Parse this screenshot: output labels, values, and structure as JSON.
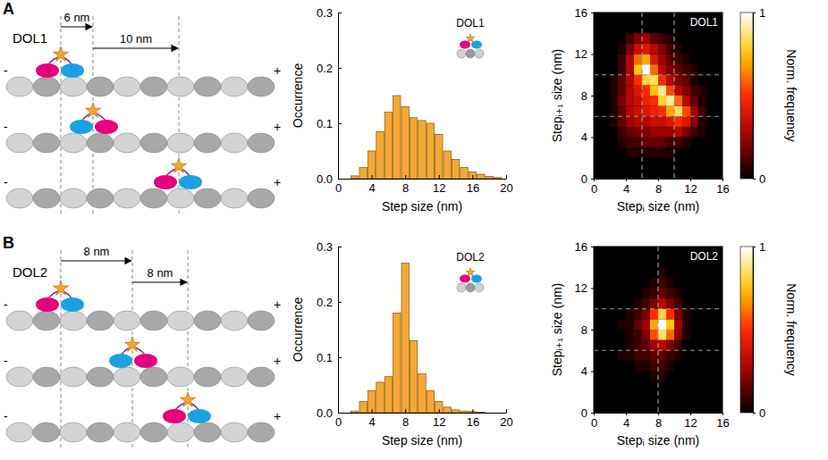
{
  "panels": [
    {
      "letter": "A",
      "diagram": {
        "label": "DOL1",
        "steps": [
          "6 nm",
          "10 nm"
        ],
        "minus": "-",
        "plus": "+"
      }
    },
    {
      "letter": "B",
      "diagram": {
        "label": "DOL2",
        "steps": [
          "8 nm",
          "8 nm"
        ],
        "minus": "-",
        "plus": "+"
      }
    }
  ],
  "chart_data": [
    {
      "type": "histogram",
      "annotation": "DOL1",
      "xlabel": "Step size (nm)",
      "ylabel": "Occurrence",
      "bins": [
        1.5,
        2.5,
        3.5,
        4.5,
        5.5,
        6.5,
        7.5,
        8.5,
        9.5,
        10.5,
        11.5,
        12.5,
        13.5,
        14.5,
        15.5,
        16.5,
        17.5,
        18.5,
        19.5
      ],
      "values": [
        0.005,
        0.02,
        0.05,
        0.085,
        0.12,
        0.15,
        0.13,
        0.11,
        0.105,
        0.1,
        0.08,
        0.05,
        0.035,
        0.02,
        0.012,
        0.008,
        0.004,
        0.002
      ],
      "color": "#f7a833",
      "xlim": [
        0,
        20
      ],
      "ylim": [
        0,
        0.3
      ],
      "xticks": [
        0,
        4,
        8,
        12,
        16,
        20
      ],
      "yticks": [
        {
          "value": 0,
          "label": "0.0"
        },
        0.1,
        0.2,
        0.3
      ]
    },
    {
      "type": "heatmap",
      "annotation": "DOL1",
      "xlabel": "Stepᵢ size (nm)",
      "ylabel": "Stepᵢ₊₁ size (nm)",
      "x_bins": [
        2,
        3,
        4,
        5,
        6,
        7,
        8,
        9,
        10,
        11,
        12,
        13,
        14
      ],
      "y_bins": [
        2,
        3,
        4,
        5,
        6,
        7,
        8,
        9,
        10,
        11,
        12,
        13,
        14
      ],
      "values": [
        [
          null,
          null,
          0.05,
          0.05,
          0.05,
          0.05,
          0.05,
          0.05,
          null,
          null,
          null,
          null
        ],
        [
          null,
          0.05,
          0.1,
          0.1,
          0.15,
          0.15,
          0.15,
          0.1,
          0.1,
          0.05,
          null,
          null
        ],
        [
          null,
          0.1,
          0.15,
          0.2,
          0.2,
          0.25,
          0.25,
          0.25,
          0.3,
          0.2,
          0.1,
          0.05
        ],
        [
          0.05,
          0.15,
          0.25,
          0.3,
          0.3,
          0.35,
          0.35,
          0.4,
          0.5,
          0.4,
          0.2,
          0.05
        ],
        [
          0.05,
          0.15,
          0.3,
          0.35,
          0.4,
          0.45,
          0.5,
          0.7,
          0.85,
          0.55,
          0.25,
          0.1
        ],
        [
          0.05,
          0.2,
          0.3,
          0.35,
          0.45,
          0.5,
          0.8,
          0.9,
          0.6,
          0.3,
          0.15,
          0.05
        ],
        [
          0.05,
          0.15,
          0.3,
          0.4,
          0.5,
          0.75,
          0.9,
          0.55,
          0.3,
          0.2,
          0.1,
          0.05
        ],
        [
          0.05,
          0.15,
          0.3,
          0.5,
          0.8,
          0.85,
          0.5,
          0.3,
          0.2,
          0.15,
          0.05,
          null
        ],
        [
          null,
          0.1,
          0.3,
          0.75,
          1.0,
          0.6,
          0.3,
          0.2,
          0.15,
          0.1,
          0.05,
          null
        ],
        [
          null,
          0.1,
          0.3,
          0.6,
          0.7,
          0.4,
          0.25,
          0.15,
          0.1,
          0.05,
          null,
          null
        ],
        [
          null,
          0.05,
          0.2,
          0.35,
          0.4,
          0.3,
          0.2,
          0.1,
          0.05,
          null,
          null,
          null
        ],
        [
          null,
          null,
          0.1,
          0.2,
          0.25,
          0.15,
          0.1,
          0.05,
          null,
          null,
          null,
          null
        ]
      ],
      "xlim": [
        0,
        16
      ],
      "ylim": [
        0,
        16
      ],
      "xticks": [
        0,
        4,
        8,
        12,
        16
      ],
      "yticks": [
        0,
        4,
        8,
        12,
        16
      ],
      "reference_lines": {
        "x": [
          6,
          10
        ],
        "y": [
          6,
          10
        ]
      },
      "colorbar": {
        "label": "Norm. frequency",
        "range": [
          0,
          1
        ],
        "ticks": [
          0,
          1
        ]
      }
    },
    {
      "type": "histogram",
      "annotation": "DOL2",
      "xlabel": "Step size (nm)",
      "ylabel": "Occurrence",
      "bins": [
        1.5,
        2.5,
        3.5,
        4.5,
        5.5,
        6.5,
        7.5,
        8.5,
        9.5,
        10.5,
        11.5,
        12.5,
        13.5,
        14.5,
        15.5,
        16.5,
        17.5
      ],
      "values": [
        0.003,
        0.02,
        0.04,
        0.055,
        0.065,
        0.18,
        0.27,
        0.13,
        0.07,
        0.04,
        0.02,
        0.01,
        0.005,
        0.003,
        0.002,
        0.001
      ],
      "color": "#f7a833",
      "xlim": [
        0,
        20
      ],
      "ylim": [
        0,
        0.3
      ],
      "xticks": [
        0,
        4,
        8,
        12,
        16,
        20
      ],
      "yticks": [
        {
          "value": 0,
          "label": "0.0"
        },
        0.1,
        0.2,
        0.3
      ]
    },
    {
      "type": "heatmap",
      "annotation": "DOL2",
      "xlabel": "Stepᵢ size (nm)",
      "ylabel": "Stepᵢ₊₁ size (nm)",
      "x_bins": [
        2,
        3,
        4,
        5,
        6,
        7,
        8,
        9,
        10,
        11,
        12,
        13,
        14
      ],
      "y_bins": [
        2,
        3,
        4,
        5,
        6,
        7,
        8,
        9,
        10,
        11,
        12,
        13,
        14
      ],
      "values": [
        [
          null,
          null,
          null,
          null,
          null,
          null,
          null,
          null,
          null,
          null,
          null,
          null
        ],
        [
          null,
          null,
          null,
          null,
          null,
          0.05,
          0.05,
          null,
          null,
          null,
          null,
          null
        ],
        [
          null,
          null,
          null,
          0.05,
          0.05,
          0.1,
          0.1,
          0.05,
          null,
          null,
          null,
          null
        ],
        [
          null,
          0.05,
          0.05,
          0.1,
          0.1,
          0.15,
          0.15,
          0.1,
          0.05,
          null,
          null,
          null
        ],
        [
          null,
          null,
          0.05,
          0.1,
          0.15,
          0.25,
          0.3,
          0.2,
          0.1,
          null,
          null,
          null
        ],
        [
          null,
          null,
          0.05,
          0.1,
          0.2,
          0.55,
          0.85,
          0.6,
          0.2,
          0.05,
          null,
          null
        ],
        [
          null,
          0.05,
          0.05,
          0.15,
          0.25,
          0.7,
          1.0,
          0.75,
          0.25,
          0.05,
          null,
          null
        ],
        [
          null,
          null,
          0.05,
          0.1,
          0.2,
          0.5,
          0.8,
          0.5,
          0.2,
          0.05,
          null,
          null
        ],
        [
          null,
          null,
          null,
          0.05,
          0.1,
          0.2,
          0.3,
          0.2,
          0.1,
          null,
          null,
          null
        ],
        [
          null,
          null,
          null,
          null,
          0.05,
          0.1,
          0.15,
          0.1,
          0.05,
          null,
          null,
          null
        ],
        [
          null,
          null,
          null,
          null,
          null,
          0.05,
          0.1,
          0.05,
          null,
          null,
          null,
          null
        ],
        [
          null,
          null,
          null,
          null,
          null,
          null,
          0.05,
          null,
          null,
          null,
          null,
          null
        ]
      ],
      "xlim": [
        0,
        16
      ],
      "ylim": [
        0,
        16
      ],
      "xticks": [
        0,
        4,
        8,
        12,
        16
      ],
      "yticks": [
        0,
        4,
        8,
        12,
        16
      ],
      "reference_lines": {
        "x": [
          8
        ],
        "y": [
          6,
          10
        ]
      },
      "colorbar": {
        "label": "Norm. frequency",
        "range": [
          0,
          1
        ],
        "ticks": [
          0,
          1
        ]
      }
    }
  ]
}
